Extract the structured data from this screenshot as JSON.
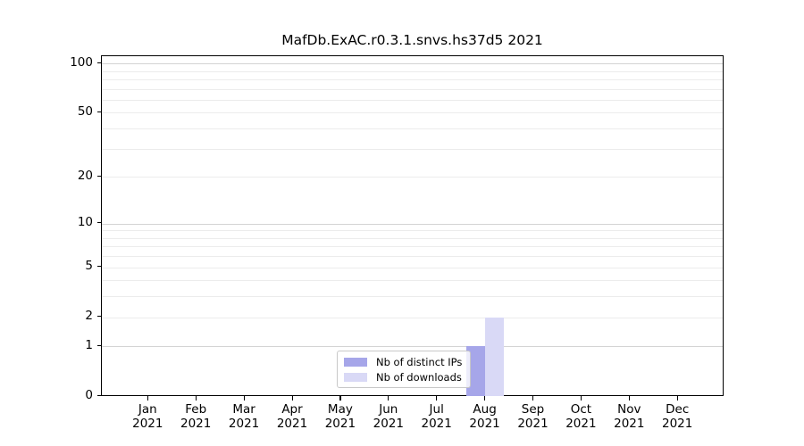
{
  "chart_data": {
    "type": "bar",
    "title": "MafDb.ExAC.r0.3.1.snvs.hs37d5 2021",
    "categories": [
      "Jan",
      "Feb",
      "Mar",
      "Apr",
      "May",
      "Jun",
      "Jul",
      "Aug",
      "Sep",
      "Oct",
      "Nov",
      "Dec"
    ],
    "category_year": "2021",
    "series": [
      {
        "name": "Nb of distinct IPs",
        "color": "#a6a6e9",
        "values": [
          0,
          0,
          0,
          0,
          0,
          0,
          0,
          1,
          0,
          0,
          0,
          0
        ]
      },
      {
        "name": "Nb of downloads",
        "color": "#d9d9f6",
        "values": [
          0,
          0,
          0,
          0,
          0,
          0,
          0,
          2,
          0,
          0,
          0,
          0
        ]
      }
    ],
    "yscale": "log1p",
    "ylim": [
      0,
      110.7
    ],
    "yticks": [
      0,
      1,
      2,
      5,
      10,
      20,
      50,
      100
    ],
    "major_gridlines": [
      1,
      10,
      100
    ],
    "minor_gridlines": [
      2,
      3,
      4,
      5,
      6,
      7,
      8,
      9,
      20,
      30,
      40,
      50,
      60,
      70,
      80,
      90
    ],
    "grid": "horizontal",
    "legend_position": "lower-center-inside",
    "xlabel": "",
    "ylabel": ""
  },
  "colors": {
    "bar_distinct_ips": "#a6a6e9",
    "bar_downloads": "#d9d9f6",
    "major_grid": "#d4d4d4",
    "minor_grid": "#ececec",
    "spine": "#000000",
    "legend_border": "#c8c8c8",
    "text": "#000000"
  }
}
